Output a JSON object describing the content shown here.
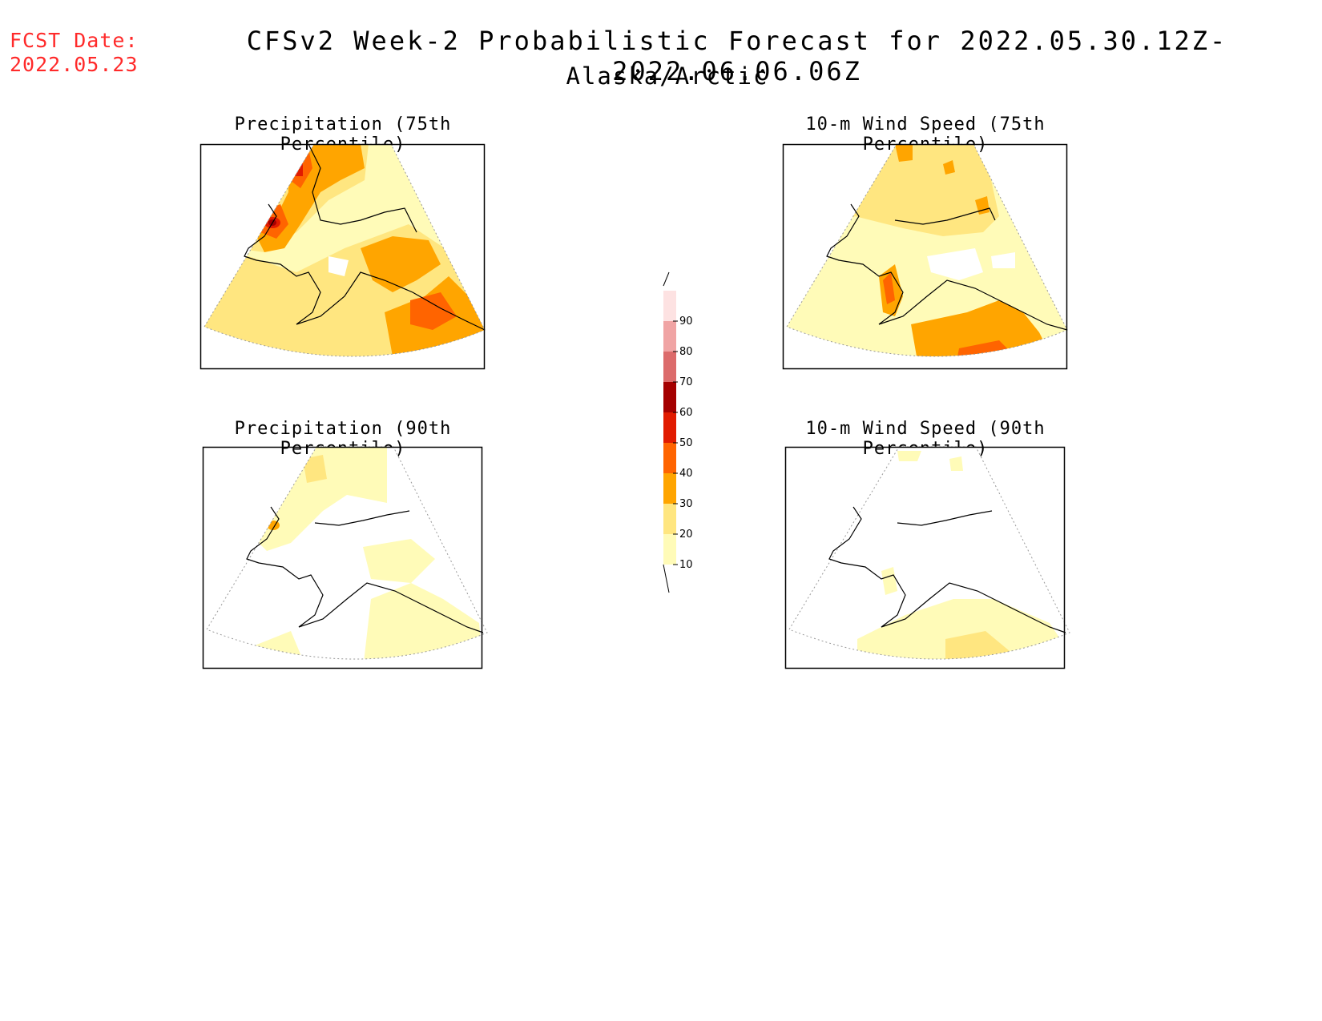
{
  "header": {
    "fcst_label": "FCST Date:",
    "fcst_date": "2022.05.23",
    "title": "CFSv2 Week-2 Probabilistic Forecast for 2022.05.30.12Z-2022.06.06.06Z",
    "region": "Alaska/Arctic"
  },
  "panels": [
    {
      "id": "precip75",
      "title": "Precipitation (75th Percentile)"
    },
    {
      "id": "wind75",
      "title": "10-m Wind Speed (75th Percentile)"
    },
    {
      "id": "precip90",
      "title": "Precipitation (90th Percentile)"
    },
    {
      "id": "wind90",
      "title": "10-m Wind Speed (90th Percentile)"
    }
  ],
  "colorbar": {
    "levels": [
      "10",
      "20",
      "30",
      "40",
      "50",
      "60",
      "70",
      "80",
      "90"
    ],
    "colors": [
      "#fffbb8",
      "#ffe680",
      "#ffa500",
      "#ff6400",
      "#e11b00",
      "#a50000",
      "#dc6b6b",
      "#f0a4a4",
      "#fde2e2"
    ]
  },
  "colors": {
    "fcst_text": "#ff2a2a"
  }
}
